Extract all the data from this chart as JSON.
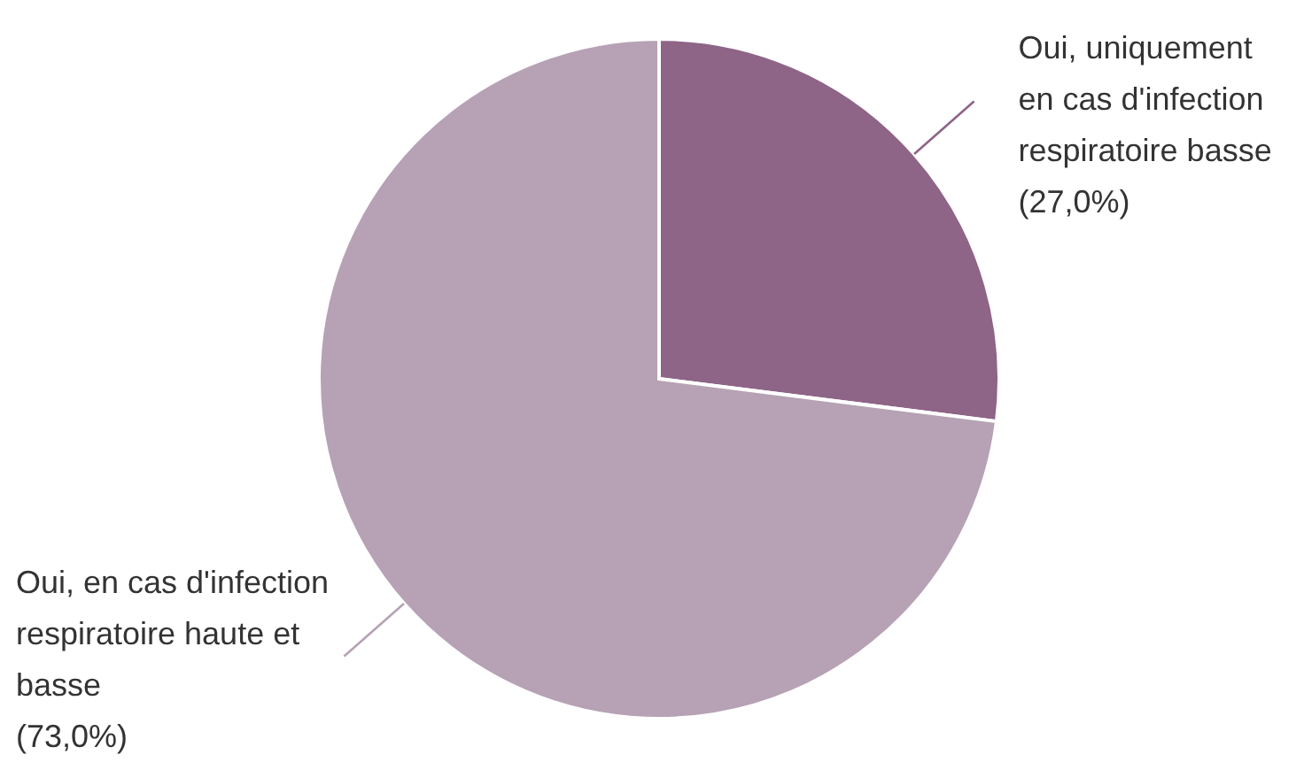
{
  "chart_data": {
    "type": "pie",
    "categories": [
      "Oui, uniquement en cas d'infection respiratoire basse",
      "Oui, en cas d'infection respiratoire haute et basse"
    ],
    "values": [
      27.0,
      73.0
    ],
    "colors": [
      "#8e6487",
      "#b6a2b4"
    ],
    "value_labels": [
      "(27,0%)",
      "(73,0%)"
    ],
    "legend": false
  }
}
